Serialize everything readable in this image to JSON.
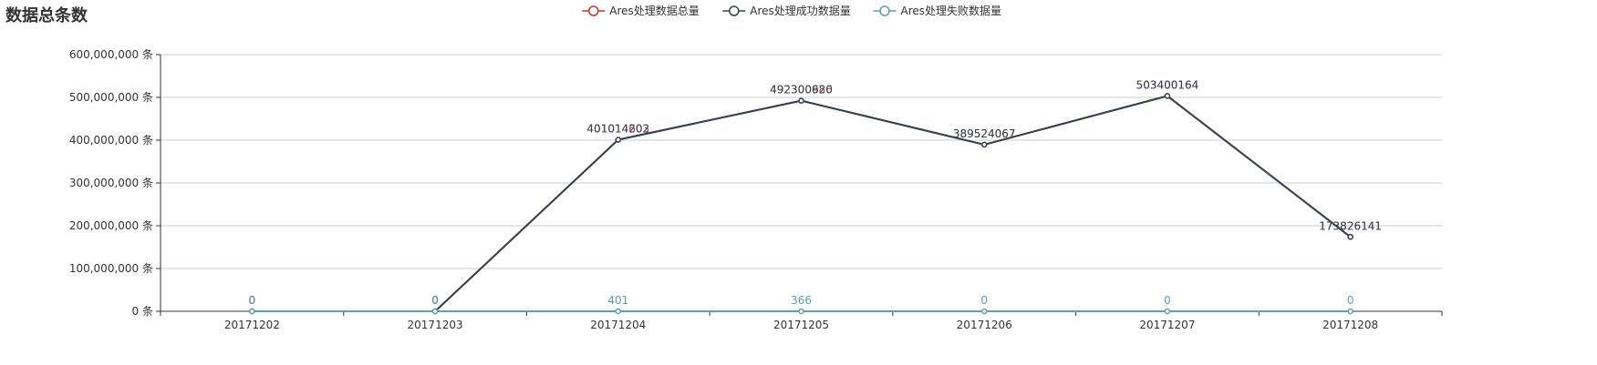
{
  "chart_data": {
    "type": "line",
    "title": "数据总条数",
    "x": [
      "20171202",
      "20171203",
      "20171204",
      "20171205",
      "20171206",
      "20171207",
      "20171208"
    ],
    "ylim": [
      0,
      600000000
    ],
    "yticks": [
      0,
      100000000,
      200000000,
      300000000,
      400000000,
      500000000,
      600000000
    ],
    "ytick_labels": [
      "0 条",
      "100,000,000 条",
      "200,000,000 条",
      "300,000,000 条",
      "400,000,000 条",
      "500,000,000 条",
      "600,000,000 条"
    ],
    "grid": true,
    "legend_position": "top-center",
    "series": [
      {
        "name": "Ares处理数据总量",
        "color": "#c23531",
        "values": [
          0,
          0,
          401014603,
          492300986,
          389524067,
          503400164,
          173826141
        ],
        "labels": [
          "0",
          "0",
          "401014603",
          "492300986",
          "389524067",
          "503400164",
          "173826141"
        ]
      },
      {
        "name": "Ares处理成功数据量",
        "color": "#2f4554",
        "values": [
          0,
          0,
          401014202,
          492300620,
          389524067,
          503400164,
          173826141
        ],
        "labels": [
          "0",
          "0",
          "401014202",
          "492300620",
          "389524067",
          "503400164",
          "173826141"
        ]
      },
      {
        "name": "Ares处理失败数据量",
        "color": "#61a0a8",
        "values": [
          0,
          0,
          401,
          366,
          0,
          0,
          0
        ],
        "labels": [
          "0",
          "0",
          "401",
          "366",
          "0",
          "0",
          "0"
        ]
      }
    ]
  }
}
